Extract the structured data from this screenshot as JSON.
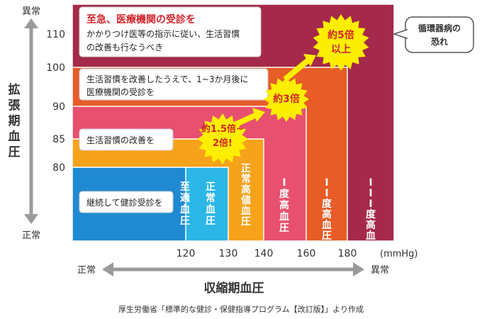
{
  "chart_data": {
    "type": "area",
    "title": "",
    "xlabel": "収縮期血圧",
    "ylabel": "拡張期血圧",
    "x_unit": "(mmHg)",
    "x_ticks": [
      "120",
      "130",
      "140",
      "160",
      "180"
    ],
    "y_ticks": [
      "110",
      "100",
      "90",
      "85",
      "80"
    ],
    "x_axis_ends": {
      "low": "正常",
      "high": "異常"
    },
    "y_axis_ends": {
      "low": "正常",
      "high": "異常"
    },
    "zones": [
      {
        "label": "III度高血圧",
        "systolic_min": 180,
        "diastolic_min": 110,
        "color": "#a5294a"
      },
      {
        "label": "II度高血圧",
        "systolic_min": 160,
        "diastolic_min": 100,
        "color": "#e75c27"
      },
      {
        "label": "I度高血圧",
        "systolic_min": 140,
        "diastolic_min": 90,
        "color": "#e8506f"
      },
      {
        "label": "正常高値血圧",
        "systolic_min": 130,
        "diastolic_min": 85,
        "color": "#f6a21b"
      },
      {
        "label": "正常血圧",
        "systolic_min": 120,
        "diastolic_min": 80,
        "color": "#2bb6e6"
      },
      {
        "label": "至適血圧",
        "systolic_max": 120,
        "diastolic_max": 80,
        "color": "#1f8ad2"
      }
    ],
    "advice": [
      {
        "title": "至急、医療機関の受診を",
        "lines": [
          "かかりつけ医等の指示に従い、生活習慣",
          "の改善も行なうべき"
        ]
      },
      {
        "lines": [
          "生活習慣を改善したうえで、1~3か月後に",
          "医療機関の受診を"
        ]
      },
      {
        "lines": [
          "生活習慣の改善を"
        ]
      },
      {
        "lines": [
          "継続して健診受診を"
        ]
      }
    ],
    "risk_bursts": [
      {
        "lines": [
          "約1.5倍~",
          "2倍!"
        ]
      },
      {
        "lines": [
          "約3倍"
        ]
      },
      {
        "lines": [
          "約5倍",
          "以上"
        ]
      }
    ],
    "callout": {
      "lines": [
        "循環器病の",
        "恐れ"
      ]
    },
    "source": "厚生労働省「標準的な健診・保健指導プログラム【改訂版】」より作成"
  },
  "colors": {
    "burst": "#fdee00",
    "burst_text": "#d2262b",
    "burst_arrow": "#fdee00",
    "advice_title": "#d2262b",
    "axis_arrow": "#9a9a9a",
    "callout_border": "#555555"
  }
}
